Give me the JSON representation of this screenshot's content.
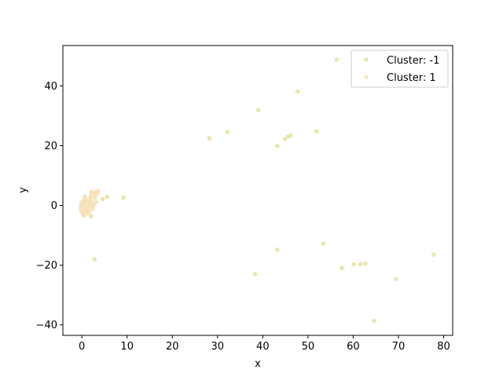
{
  "chart_data": {
    "type": "scatter",
    "title": "",
    "xlabel": "x",
    "ylabel": "y",
    "xlim": [
      -4.2,
      82
    ],
    "ylim": [
      -43.5,
      53.5
    ],
    "xticks": [
      0,
      10,
      20,
      30,
      40,
      50,
      60,
      70,
      80
    ],
    "yticks": [
      -40,
      -20,
      0,
      20,
      40
    ],
    "grid": false,
    "legend_position": "top-right",
    "series": [
      {
        "name": "Cluster: -1",
        "color": "#e8e0a2",
        "points": [
          [
            56.3,
            48.8
          ],
          [
            47.7,
            38.1
          ],
          [
            39.0,
            31.9
          ],
          [
            51.9,
            24.8
          ],
          [
            32.2,
            24.6
          ],
          [
            28.2,
            22.5
          ],
          [
            46.2,
            23.5
          ],
          [
            45.6,
            23.0
          ],
          [
            44.9,
            22.2
          ],
          [
            43.2,
            19.9
          ],
          [
            53.4,
            -12.8
          ],
          [
            43.2,
            -14.8
          ],
          [
            77.8,
            -16.5
          ],
          [
            60.1,
            -19.7
          ],
          [
            61.6,
            -19.7
          ],
          [
            62.7,
            -19.5
          ],
          [
            57.5,
            -21.0
          ],
          [
            38.3,
            -23.0
          ],
          [
            69.5,
            -24.6
          ],
          [
            64.6,
            -38.6
          ],
          [
            2.8,
            -18.0
          ],
          [
            9.2,
            2.6
          ],
          [
            5.6,
            2.9
          ],
          [
            4.6,
            2.1
          ],
          [
            2.0,
            -3.6
          ]
        ]
      },
      {
        "name": "Cluster: 1",
        "color": "#f5e0b5",
        "points": [
          [
            0.0,
            0.0
          ],
          [
            0.3,
            0.8
          ],
          [
            0.6,
            -0.5
          ],
          [
            0.9,
            1.5
          ],
          [
            1.2,
            -1.2
          ],
          [
            0.2,
            -2.5
          ],
          [
            0.5,
            -3.4
          ],
          [
            0.8,
            2.2
          ],
          [
            1.5,
            0.6
          ],
          [
            1.8,
            1.9
          ],
          [
            2.1,
            3.6
          ],
          [
            2.5,
            4.3
          ],
          [
            3.0,
            4.6
          ],
          [
            3.4,
            3.9
          ],
          [
            2.8,
            2.4
          ],
          [
            2.2,
            1.2
          ],
          [
            1.7,
            -0.3
          ],
          [
            1.0,
            -2.0
          ],
          [
            0.4,
            1.6
          ],
          [
            -0.2,
            0.5
          ],
          [
            -0.3,
            -0.9
          ],
          [
            0.7,
            -1.6
          ],
          [
            1.3,
            -2.7
          ],
          [
            0.1,
            1.2
          ],
          [
            2.6,
            0.2
          ],
          [
            3.2,
            1.1
          ],
          [
            1.9,
            2.8
          ],
          [
            2.4,
            -1.1
          ],
          [
            0.6,
            3.0
          ],
          [
            1.1,
            0.3
          ],
          [
            -0.1,
            -1.8
          ],
          [
            0.3,
            -3.0
          ],
          [
            1.6,
            -1.9
          ],
          [
            2.9,
            3.2
          ],
          [
            3.6,
            4.8
          ],
          [
            2.0,
            4.5
          ],
          [
            0.5,
            0.9
          ],
          [
            1.4,
            1.0
          ],
          [
            0.9,
            -0.8
          ],
          [
            2.3,
            -0.2
          ]
        ]
      }
    ]
  }
}
